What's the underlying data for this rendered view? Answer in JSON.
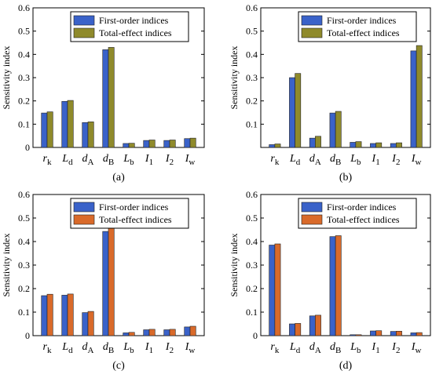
{
  "figure": {
    "series_colors": {
      "first_order": "#3a62c9",
      "total_effect_olive": "#8f8a2b",
      "total_effect_orange": "#d96a2a"
    }
  },
  "chart_data": [
    {
      "type": "bar",
      "panel_label": "(a)",
      "ylabel": "Sensitivity index",
      "ylim": [
        0,
        0.6
      ],
      "yticks": [
        "0",
        "0.1",
        "0.2",
        "0.3",
        "0.4",
        "0.5",
        "0.6"
      ],
      "categories": [
        {
          "main": "r",
          "sub": "k"
        },
        {
          "main": "L",
          "sub": "d"
        },
        {
          "main": "d",
          "sub": "A"
        },
        {
          "main": "d",
          "sub": "B"
        },
        {
          "main": "L",
          "sub": "b"
        },
        {
          "main": "I",
          "sub": "1"
        },
        {
          "main": "I",
          "sub": "2"
        },
        {
          "main": "I",
          "sub": "w"
        }
      ],
      "series": [
        {
          "name": "First-order indices",
          "color": "#3a62c9",
          "values": [
            0.148,
            0.198,
            0.107,
            0.42,
            0.017,
            0.03,
            0.03,
            0.038
          ]
        },
        {
          "name": "Total-effect indices",
          "color": "#8f8a2b",
          "values": [
            0.153,
            0.202,
            0.11,
            0.43,
            0.018,
            0.032,
            0.032,
            0.04
          ]
        }
      ],
      "legend": "top-right",
      "grid": false
    },
    {
      "type": "bar",
      "panel_label": "(b)",
      "ylabel": "Sensitivity index",
      "ylim": [
        0,
        0.6
      ],
      "yticks": [
        "0.1",
        "0.2",
        "0.3",
        "0.4",
        "0.5",
        "0.6"
      ],
      "categories": [
        {
          "main": "r",
          "sub": "k"
        },
        {
          "main": "L",
          "sub": "d"
        },
        {
          "main": "d",
          "sub": "A"
        },
        {
          "main": "d",
          "sub": "B"
        },
        {
          "main": "L",
          "sub": "b"
        },
        {
          "main": "I",
          "sub": "1"
        },
        {
          "main": "I",
          "sub": "2"
        },
        {
          "main": "I",
          "sub": "w"
        }
      ],
      "series": [
        {
          "name": "First-order indices",
          "color": "#3a62c9",
          "values": [
            0.012,
            0.3,
            0.04,
            0.148,
            0.022,
            0.017,
            0.017,
            0.415
          ]
        },
        {
          "name": "Total-effect indices",
          "color": "#8f8a2b",
          "values": [
            0.015,
            0.318,
            0.048,
            0.155,
            0.025,
            0.02,
            0.02,
            0.438
          ]
        }
      ],
      "legend": "top-right",
      "grid": false
    },
    {
      "type": "bar",
      "panel_label": "(c)",
      "ylabel": "Sensitivity index",
      "ylim": [
        0,
        0.6
      ],
      "yticks": [
        "0",
        "0.1",
        "0.2",
        "0.3",
        "0.4",
        "0.5",
        "0.6"
      ],
      "categories": [
        {
          "main": "r",
          "sub": "k"
        },
        {
          "main": "L",
          "sub": "d"
        },
        {
          "main": "d",
          "sub": "A"
        },
        {
          "main": "d",
          "sub": "B"
        },
        {
          "main": "L",
          "sub": "b"
        },
        {
          "main": "I",
          "sub": "1"
        },
        {
          "main": "I",
          "sub": "2"
        },
        {
          "main": "I",
          "sub": "w"
        }
      ],
      "series": [
        {
          "name": "First-order indices",
          "color": "#3a62c9",
          "values": [
            0.17,
            0.172,
            0.098,
            0.443,
            0.012,
            0.025,
            0.025,
            0.037
          ]
        },
        {
          "name": "Total-effect indices",
          "color": "#d96a2a",
          "values": [
            0.176,
            0.177,
            0.103,
            0.458,
            0.014,
            0.027,
            0.027,
            0.04
          ]
        }
      ],
      "legend": "top-right",
      "grid": false
    },
    {
      "type": "bar",
      "panel_label": "(d)",
      "ylabel": "Sensitivity index",
      "ylim": [
        0,
        0.6
      ],
      "yticks": [
        "0",
        "0.1",
        "0.2",
        "0.3",
        "0.4",
        "0.5",
        "0.6"
      ],
      "categories": [
        {
          "main": "r",
          "sub": "k"
        },
        {
          "main": "L",
          "sub": "d"
        },
        {
          "main": "d",
          "sub": "A"
        },
        {
          "main": "d",
          "sub": "B"
        },
        {
          "main": "L",
          "sub": "b"
        },
        {
          "main": "I",
          "sub": "1"
        },
        {
          "main": "I",
          "sub": "2"
        },
        {
          "main": "I",
          "sub": "w"
        }
      ],
      "series": [
        {
          "name": "First-order indices",
          "color": "#3a62c9",
          "values": [
            0.385,
            0.05,
            0.084,
            0.421,
            0.004,
            0.02,
            0.018,
            0.012
          ]
        },
        {
          "name": "Total-effect indices",
          "color": "#d96a2a",
          "values": [
            0.39,
            0.052,
            0.087,
            0.425,
            0.004,
            0.021,
            0.019,
            0.013
          ]
        }
      ],
      "legend": "top-right",
      "grid": false
    }
  ]
}
